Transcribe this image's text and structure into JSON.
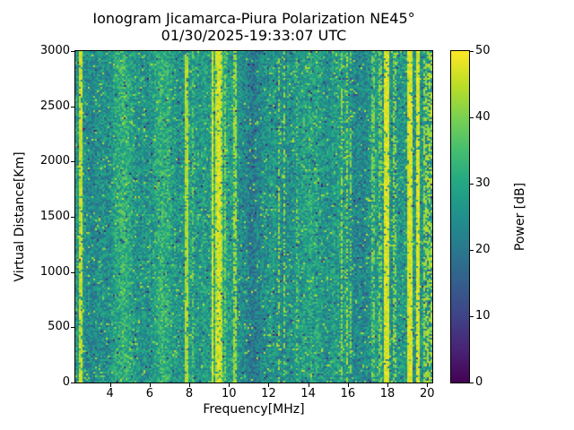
{
  "colors": {
    "background": "#ffffff",
    "text": "#000000",
    "axis": "#000000"
  },
  "chart_data": {
    "type": "heatmap",
    "title": "Ionogram Jicamarca-Piura Polarization NE45°",
    "subtitle": "01/30/2025-19:33:07 UTC",
    "xlabel": "Frequency[MHz]",
    "ylabel": "Virtual Distance[Km]",
    "colorbar_label": "Power [dB]",
    "xlim": [
      2.25,
      20.26
    ],
    "ylim": [
      0,
      3000
    ],
    "clim": [
      0,
      50
    ],
    "xticks": [
      4,
      6,
      8,
      10,
      12,
      14,
      16,
      18,
      20
    ],
    "yticks": [
      0,
      500,
      1000,
      1500,
      2000,
      2500,
      3000
    ],
    "colorbar_ticks": [
      0,
      10,
      20,
      30,
      40,
      50
    ],
    "colormap": "viridis",
    "viridis_stops": [
      [
        0.0,
        68,
        1,
        84
      ],
      [
        0.1,
        72,
        36,
        117
      ],
      [
        0.2,
        64,
        67,
        135
      ],
      [
        0.3,
        52,
        94,
        141
      ],
      [
        0.4,
        41,
        120,
        142
      ],
      [
        0.5,
        32,
        144,
        140
      ],
      [
        0.6,
        34,
        167,
        132
      ],
      [
        0.7,
        68,
        190,
        112
      ],
      [
        0.8,
        121,
        209,
        81
      ],
      [
        0.9,
        189,
        222,
        38
      ],
      [
        1.0,
        253,
        231,
        37
      ]
    ],
    "background_noise": {
      "base_db": 26.5,
      "noise_halfspan_db": 7,
      "bright_speck_prob": 0.035,
      "bright_speck_db": [
        38,
        46
      ],
      "dark_speck_prob": 0.02,
      "dark_speck_db": [
        4,
        16
      ]
    },
    "diffuse_bright_bands": [
      {
        "f_center": 4.65,
        "f_width": 0.8,
        "boost_db": 4.5
      },
      {
        "f_center": 6.75,
        "f_width": 0.8,
        "boost_db": 4.5
      },
      {
        "f_center": 9.45,
        "f_width": 0.8,
        "boost_db": 5.0
      },
      {
        "f_center": 14.35,
        "f_width": 0.8,
        "boost_db": 3.5
      }
    ],
    "dark_bands": [
      {
        "f_center": 3.0,
        "f_width": 0.55,
        "drop_db": 3.5
      },
      {
        "f_center": 11.4,
        "f_width": 1.5,
        "drop_db": 4.0
      },
      {
        "f_center": 16.65,
        "f_width": 0.65,
        "drop_db": 2.5
      }
    ],
    "interference_stripes": [
      {
        "f_mhz": 2.52,
        "width_mhz": 0.16,
        "power_db": 49,
        "density": 0.88
      },
      {
        "f_mhz": 2.7,
        "width_mhz": 0.08,
        "power_db": 40,
        "density": 0.45
      },
      {
        "f_mhz": 7.86,
        "width_mhz": 0.1,
        "power_db": 47,
        "density": 0.85
      },
      {
        "f_mhz": 8.18,
        "width_mhz": 0.08,
        "power_db": 41,
        "density": 0.45
      },
      {
        "f_mhz": 9.15,
        "width_mhz": 0.12,
        "power_db": 50,
        "density": 0.9
      },
      {
        "f_mhz": 9.33,
        "width_mhz": 0.11,
        "power_db": 49,
        "density": 0.85
      },
      {
        "f_mhz": 9.5,
        "width_mhz": 0.13,
        "power_db": 50,
        "density": 0.9
      },
      {
        "f_mhz": 9.66,
        "width_mhz": 0.1,
        "power_db": 48,
        "density": 0.8
      },
      {
        "f_mhz": 9.82,
        "width_mhz": 0.08,
        "power_db": 44,
        "density": 0.5
      },
      {
        "f_mhz": 10.3,
        "width_mhz": 0.12,
        "power_db": 46,
        "density": 0.65
      },
      {
        "f_mhz": 12.55,
        "width_mhz": 0.12,
        "power_db": 46,
        "density": 0.5
      },
      {
        "f_mhz": 12.78,
        "width_mhz": 0.1,
        "power_db": 45,
        "density": 0.45
      },
      {
        "f_mhz": 13.4,
        "width_mhz": 0.1,
        "power_db": 41,
        "density": 0.3
      },
      {
        "f_mhz": 15.7,
        "width_mhz": 0.14,
        "power_db": 45,
        "density": 0.5
      },
      {
        "f_mhz": 15.95,
        "width_mhz": 0.12,
        "power_db": 46,
        "density": 0.5
      },
      {
        "f_mhz": 16.15,
        "width_mhz": 0.1,
        "power_db": 44,
        "density": 0.4
      },
      {
        "f_mhz": 17.25,
        "width_mhz": 0.18,
        "power_db": 43,
        "density": 0.45
      },
      {
        "f_mhz": 17.65,
        "width_mhz": 0.12,
        "power_db": 44,
        "density": 0.45
      },
      {
        "f_mhz": 17.95,
        "width_mhz": 0.22,
        "power_db": 50,
        "density": 0.95
      },
      {
        "f_mhz": 18.38,
        "width_mhz": 0.2,
        "power_db": 45,
        "density": 0.5
      },
      {
        "f_mhz": 19.15,
        "width_mhz": 0.25,
        "power_db": 50,
        "density": 0.95
      },
      {
        "f_mhz": 19.55,
        "width_mhz": 0.22,
        "power_db": 50,
        "density": 0.92
      },
      {
        "f_mhz": 20.0,
        "width_mhz": 0.3,
        "power_db": 46,
        "density": 0.5
      },
      {
        "f_mhz": 20.22,
        "width_mhz": 0.15,
        "power_db": 46,
        "density": 0.5
      }
    ]
  }
}
